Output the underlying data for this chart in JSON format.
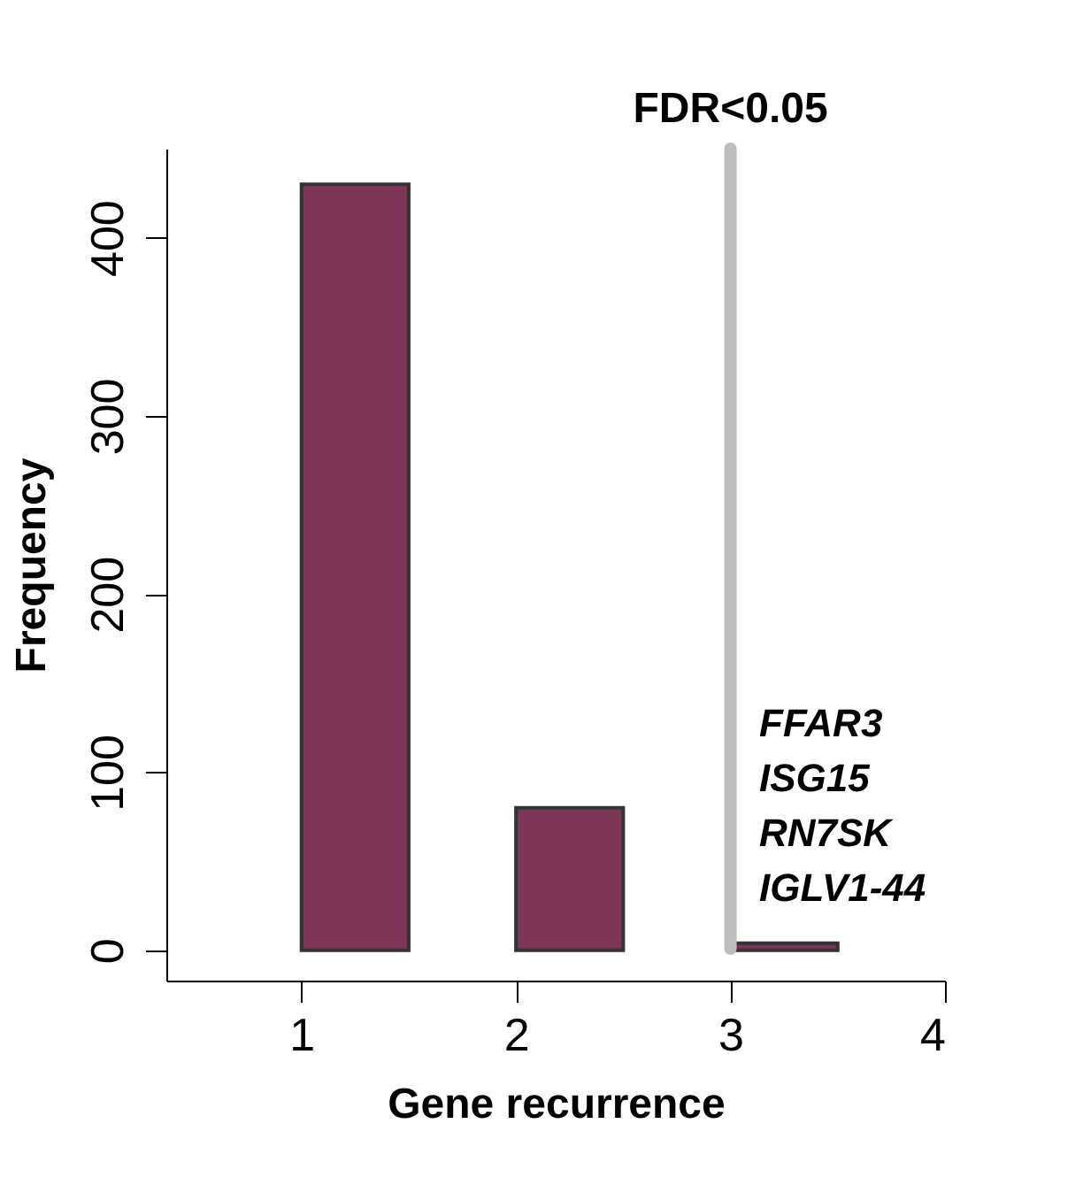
{
  "chart_data": {
    "type": "histogram",
    "xlabel": "Gene recurrence",
    "ylabel": "Frequency",
    "bins": [
      1,
      1.5,
      2,
      2.5,
      3,
      3.5
    ],
    "values": [
      430,
      0,
      80,
      0,
      4
    ],
    "color": "#7f3556",
    "xlim": [
      0.37,
      4
    ],
    "xticks": [
      1,
      2,
      3,
      4
    ],
    "ylim": [
      -17,
      450
    ],
    "yticks": [
      0,
      100,
      200,
      300,
      400
    ],
    "grid": false,
    "ref_lines": [
      {
        "axis": "x",
        "value": 3,
        "label": "FDR<0.05",
        "color": "#bebebe"
      }
    ],
    "annotations": [
      "FFAR3",
      "ISG15",
      "RN7SK",
      "IGLV1-44"
    ]
  }
}
